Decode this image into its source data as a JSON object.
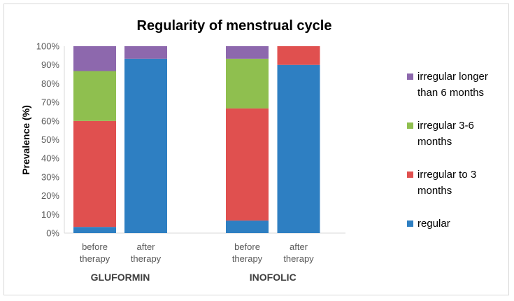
{
  "chart_data": {
    "type": "bar",
    "stacked": true,
    "title": "Regularity of menstrual cycle",
    "xlabel": "",
    "ylabel": "Prevalence (%)",
    "ylim": [
      0,
      100
    ],
    "y_ticks": [
      "0%",
      "10%",
      "20%",
      "30%",
      "40%",
      "50%",
      "60%",
      "70%",
      "80%",
      "90%",
      "100%"
    ],
    "categories": [
      [
        "before",
        "therapy"
      ],
      [
        "after",
        "therapy"
      ],
      [
        "before",
        "therapy"
      ],
      [
        "after",
        "therapy"
      ]
    ],
    "groups": [
      {
        "name": "GLUFORMIN",
        "category_indices": [
          0,
          1
        ]
      },
      {
        "name": "INOFOLIC",
        "category_indices": [
          2,
          3
        ]
      }
    ],
    "series": [
      {
        "name": "regular",
        "color": "#2e7fc2",
        "values": [
          3.3,
          93.3,
          6.7,
          90
        ]
      },
      {
        "name": "irregular to  3 months",
        "color": "#e0504f",
        "values": [
          56.7,
          0,
          60,
          10
        ]
      },
      {
        "name": "irregular 3-6 months",
        "color": "#8fbf4f",
        "values": [
          26.7,
          0,
          26.6,
          0
        ]
      },
      {
        "name": "irregular longer than 6 months",
        "color": "#8d68ad",
        "values": [
          13.3,
          6.7,
          6.7,
          0
        ]
      }
    ],
    "legend": [
      {
        "series_index": 3,
        "lines": [
          "irregular longer",
          "than 6 months"
        ]
      },
      {
        "series_index": 2,
        "lines": [
          "irregular 3-6",
          "months"
        ]
      },
      {
        "series_index": 1,
        "lines": [
          "irregular to  3",
          "months"
        ]
      },
      {
        "series_index": 0,
        "lines": [
          "regular"
        ]
      }
    ],
    "legend_position": "right",
    "grid": false
  }
}
